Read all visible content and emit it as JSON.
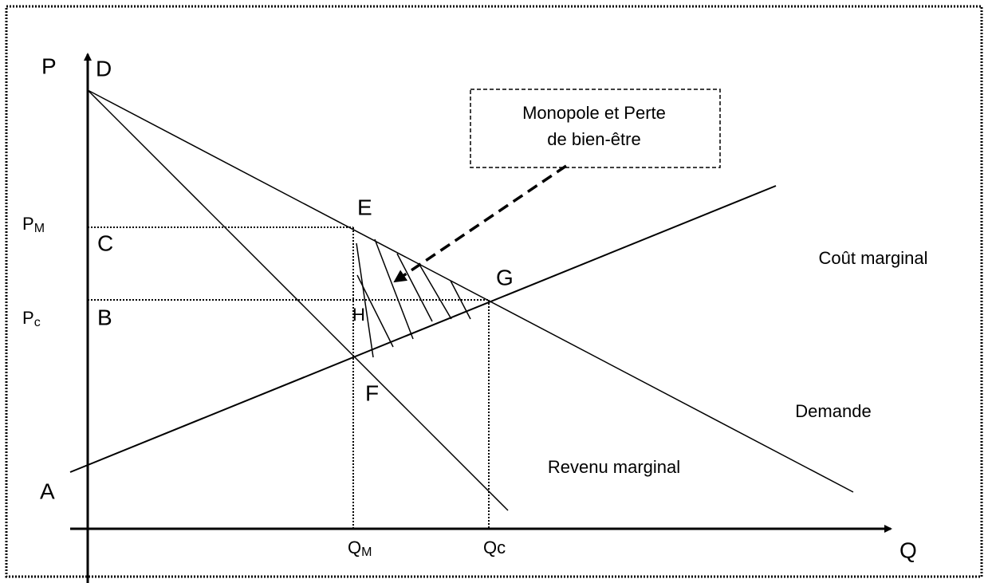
{
  "axes": {
    "y": "P",
    "x": "Q"
  },
  "points": {
    "D": "D",
    "E": "E",
    "C": "C",
    "B": "B",
    "A": "A",
    "G": "G",
    "H": "H",
    "F": "F"
  },
  "price_labels": {
    "monopoly": {
      "main": "P",
      "sub": "M"
    },
    "competitive": {
      "main": "P",
      "sub": "c"
    }
  },
  "quantity_labels": {
    "monopoly": {
      "main": "Q",
      "sub": "M"
    },
    "competitive": "Qc"
  },
  "curves": {
    "marginal_cost": "Coût marginal",
    "demand": "Demande",
    "marginal_revenue": "Revenu marginal"
  },
  "callout": {
    "line1": "Monopole et Perte",
    "line2": "de bien-être"
  }
}
